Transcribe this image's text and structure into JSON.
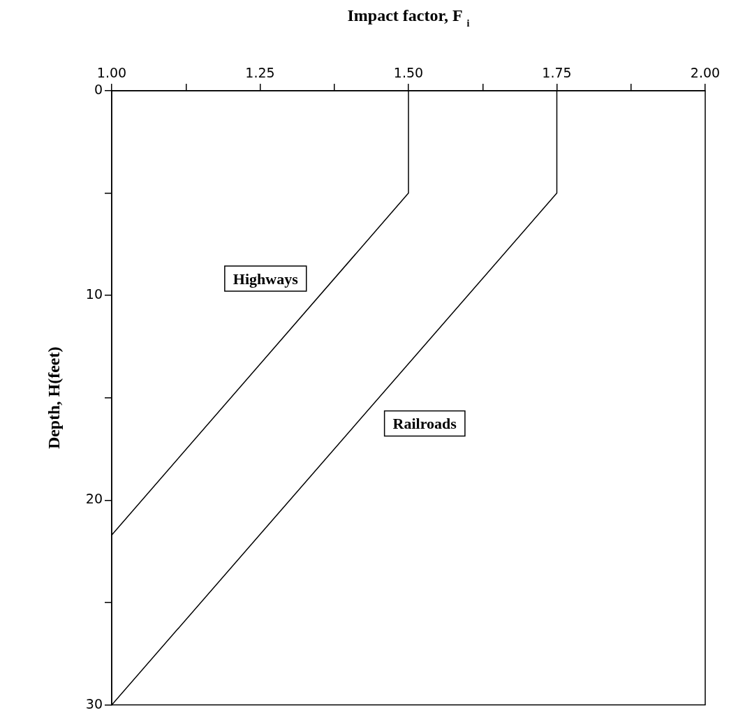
{
  "chart_data": {
    "type": "line",
    "xlabel": "Impact factor, F$_{i}$",
    "ylabel": "Depth, H(feet)",
    "xlim": [
      1.0,
      2.0
    ],
    "xticks": [
      {
        "value": 1.0,
        "label": "1.00"
      },
      {
        "value": 1.125,
        "label": null
      },
      {
        "value": 1.25,
        "label": "1.25"
      },
      {
        "value": 1.375,
        "label": null
      },
      {
        "value": 1.5,
        "label": "1.50"
      },
      {
        "value": 1.625,
        "label": null
      },
      {
        "value": 1.75,
        "label": "1.75"
      },
      {
        "value": 1.875,
        "label": null
      },
      {
        "value": 2.0,
        "label": "2.00"
      }
    ],
    "ylim": [
      30,
      0
    ],
    "yticks": [
      0,
      {
        "value": 5,
        "label": null
      },
      10,
      {
        "value": 15,
        "label": null
      },
      20,
      {
        "value": 25,
        "label": null
      },
      30
    ],
    "series": [
      {
        "name": "Highways",
        "color": "#000000",
        "x": [
          1.5,
          1.5,
          1.0
        ],
        "values": [
          0,
          5,
          21.7
        ]
      },
      {
        "name": "Railroads",
        "color": "#000000",
        "x": [
          1.75,
          1.75,
          1.0
        ],
        "values": [
          0,
          5,
          30
        ]
      }
    ],
    "grid": false,
    "legend": false,
    "marker": "none",
    "line_style": "solid"
  }
}
